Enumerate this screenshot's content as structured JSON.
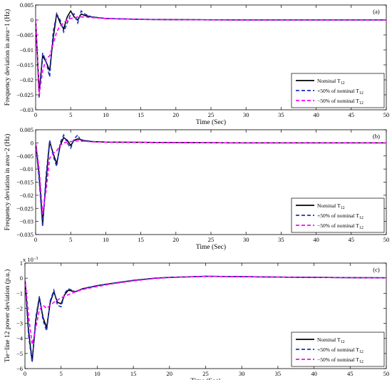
{
  "chart_data": [
    {
      "type": "line",
      "panel_label": "(a)",
      "xlabel": "Time (Sec)",
      "ylabel": "Frequency deviation in area−1 (Hz)",
      "xlim": [
        0,
        50
      ],
      "ylim": [
        -0.03,
        0.005
      ],
      "xticks": [
        "0",
        "5",
        "10",
        "15",
        "20",
        "25",
        "30",
        "35",
        "40",
        "45",
        "50"
      ],
      "yticks": [
        "0.005",
        "0",
        "−0.005",
        "−0.01",
        "−0.015",
        "−0.02",
        "−0.025",
        "−0.03"
      ],
      "exponent_label": "",
      "grid": false,
      "legend_position": "bottom-right",
      "legend": [
        {
          "text": "Nominal T",
          "sub": "12",
          "color": "#000000",
          "dash": "solid"
        },
        {
          "text": "+50% of nominal T",
          "sub": "12",
          "color": "#1f2fbf",
          "dash": "dashed"
        },
        {
          "text": "−50% of nominal T",
          "sub": "12",
          "color": "#ff00ff",
          "dash": "dashed"
        }
      ],
      "series": [
        {
          "color": "#000000",
          "dash": "solid",
          "x": [
            0,
            0.5,
            1,
            1.5,
            2,
            2.5,
            3,
            3.5,
            4,
            4.5,
            5,
            5.5,
            6,
            6.5,
            7,
            8,
            10,
            15,
            20,
            30,
            50
          ],
          "y": [
            0,
            -0.024,
            -0.012,
            -0.014,
            -0.017,
            -0.006,
            0.002,
            -0.001,
            -0.003,
            0.001,
            0.003,
            0.001,
            0.0,
            0.002,
            0.0015,
            0.001,
            0.0005,
            0.0002,
            0.0001,
            0,
            0
          ]
        },
        {
          "color": "#1f2fbf",
          "dash": "dashed",
          "x": [
            0,
            0.5,
            1,
            1.5,
            2,
            2.5,
            3,
            3.5,
            4,
            4.5,
            5,
            5.5,
            6,
            6.5,
            7,
            8,
            10,
            15,
            20,
            30,
            50
          ],
          "y": [
            0,
            -0.026,
            -0.011,
            -0.014,
            -0.019,
            -0.004,
            0.002,
            0.0,
            -0.004,
            -0.001,
            0.002,
            0.002,
            -0.001,
            0.003,
            0.002,
            0.001,
            0.0005,
            0.0002,
            0.0001,
            0,
            0
          ]
        },
        {
          "color": "#ff00ff",
          "dash": "dashed",
          "x": [
            0,
            0.5,
            1,
            1.5,
            2,
            2.5,
            3,
            3.5,
            4,
            4.5,
            5,
            6,
            7,
            8,
            10,
            15,
            20,
            30,
            50
          ],
          "y": [
            0,
            -0.025,
            -0.017,
            -0.013,
            -0.012,
            -0.008,
            -0.004,
            -0.002,
            -0.001,
            0.0,
            0.0005,
            0.001,
            0.001,
            0.0008,
            0.0005,
            0.0002,
            0.0001,
            0,
            0
          ]
        }
      ]
    },
    {
      "type": "line",
      "panel_label": "(b)",
      "xlabel": "Time (Sec)",
      "ylabel": "Frequency deviation in area−2 (Hz)",
      "xlim": [
        0,
        50
      ],
      "ylim": [
        -0.035,
        0.005
      ],
      "xticks": [
        "0",
        "5",
        "10",
        "15",
        "20",
        "25",
        "30",
        "35",
        "40",
        "45",
        "50"
      ],
      "yticks": [
        "0.005",
        "0",
        "−0.005",
        "−0.01",
        "−0.015",
        "−0.02",
        "−0.025",
        "−0.03",
        "−0.035"
      ],
      "exponent_label": "",
      "grid": false,
      "legend_position": "bottom-right",
      "legend": [
        {
          "text": "Nominal T",
          "sub": "12",
          "color": "#000000",
          "dash": "solid"
        },
        {
          "text": "+50% of nominal T",
          "sub": "12",
          "color": "#1f2fbf",
          "dash": "dashed"
        },
        {
          "text": "−50% of nominal T",
          "sub": "12",
          "color": "#ff00ff",
          "dash": "dashed"
        }
      ],
      "series": [
        {
          "color": "#000000",
          "dash": "solid",
          "x": [
            0,
            0.5,
            1,
            1.5,
            2,
            2.5,
            3,
            3.5,
            4,
            4.5,
            5,
            5.5,
            6,
            7,
            8,
            10,
            15,
            20,
            30,
            50
          ],
          "y": [
            0,
            -0.012,
            -0.031,
            -0.014,
            0.0005,
            -0.004,
            -0.008,
            -0.001,
            0.002,
            0.001,
            -0.001,
            0.001,
            0.0015,
            0.0008,
            0.0005,
            0.0003,
            0.0002,
            0.0001,
            0,
            0
          ]
        },
        {
          "color": "#1f2fbf",
          "dash": "dashed",
          "x": [
            0,
            0.5,
            1,
            1.5,
            2,
            2.5,
            3,
            3.5,
            4,
            4.5,
            5,
            5.5,
            6,
            6.5,
            7,
            8,
            10,
            15,
            20,
            30,
            50
          ],
          "y": [
            0,
            -0.014,
            -0.032,
            -0.012,
            0.001,
            -0.005,
            -0.009,
            0.0,
            0.003,
            0.0,
            -0.002,
            0.0015,
            0.003,
            0.0005,
            0.001,
            0.0005,
            0.0003,
            0.0002,
            0.0001,
            0,
            0
          ]
        },
        {
          "color": "#ff00ff",
          "dash": "dashed",
          "x": [
            0,
            0.5,
            1,
            1.5,
            2,
            2.5,
            3,
            3.5,
            4,
            5,
            6,
            7,
            8,
            10,
            15,
            20,
            30,
            50
          ],
          "y": [
            0,
            -0.01,
            -0.027,
            -0.018,
            -0.006,
            -0.004,
            -0.003,
            -0.001,
            0.0,
            0.0005,
            0.0008,
            0.0006,
            0.0004,
            0.0003,
            0.0002,
            0.0001,
            0,
            0
          ]
        }
      ]
    },
    {
      "type": "line",
      "panel_label": "(c)",
      "xlabel": "Time (Sec)",
      "ylabel": "Tie−line 12 power deviation (p.u.)",
      "xlim": [
        0,
        50
      ],
      "ylim": [
        -6,
        1
      ],
      "xticks": [
        "0",
        "5",
        "10",
        "15",
        "20",
        "25",
        "30",
        "35",
        "40",
        "45",
        "50"
      ],
      "yticks": [
        "1",
        "0",
        "−1",
        "−2",
        "−3",
        "−4",
        "−5",
        "−6"
      ],
      "exponent_label": "x 10",
      "exponent_power": "−3",
      "grid": false,
      "legend_position": "bottom-right",
      "legend": [
        {
          "text": "Nominal T",
          "sub": "12",
          "color": "#000000",
          "dash": "solid"
        },
        {
          "text": "+50% of nominal T",
          "sub": "12",
          "color": "#1f2fbf",
          "dash": "dashed"
        },
        {
          "text": "−50% of nominal T",
          "sub": "12",
          "color": "#ff00ff",
          "dash": "dashed"
        }
      ],
      "series": [
        {
          "color": "#000000",
          "dash": "solid",
          "x": [
            0,
            0.5,
            1,
            1.5,
            2,
            2.5,
            3,
            3.5,
            4,
            4.5,
            5,
            5.5,
            6,
            7,
            8,
            10,
            12,
            15,
            18,
            20,
            25,
            30,
            35,
            40,
            50
          ],
          "y": [
            0,
            -3.5,
            -5.5,
            -2.8,
            -1.3,
            -2.6,
            -3.3,
            -1.6,
            -0.9,
            -1.6,
            -1.7,
            -1.1,
            -0.8,
            -0.9,
            -0.7,
            -0.5,
            -0.35,
            -0.15,
            0.0,
            0.05,
            0.12,
            0.1,
            0.07,
            0.05,
            0.02
          ]
        },
        {
          "color": "#1f2fbf",
          "dash": "dashed",
          "x": [
            0,
            0.5,
            1,
            1.5,
            2,
            2.5,
            3,
            3.5,
            4,
            4.5,
            5,
            5.5,
            6,
            7,
            8,
            10,
            12,
            15,
            18,
            20,
            25,
            30,
            35,
            40,
            50
          ],
          "y": [
            0,
            -3.8,
            -5.6,
            -2.6,
            -1.2,
            -2.8,
            -3.5,
            -1.5,
            -0.8,
            -1.8,
            -1.9,
            -1.0,
            -0.7,
            -0.9,
            -0.7,
            -0.5,
            -0.35,
            -0.15,
            0.0,
            0.05,
            0.12,
            0.1,
            0.07,
            0.05,
            0.02
          ]
        },
        {
          "color": "#ff00ff",
          "dash": "dashed",
          "x": [
            0,
            0.5,
            1,
            1.5,
            2,
            2.5,
            3,
            4,
            5,
            6,
            7,
            8,
            10,
            12,
            15,
            18,
            20,
            25,
            30,
            35,
            40,
            50
          ],
          "y": [
            0,
            -2.5,
            -4.4,
            -3.3,
            -2.1,
            -1.8,
            -2.0,
            -1.6,
            -1.3,
            -1.1,
            -0.9,
            -0.75,
            -0.55,
            -0.38,
            -0.18,
            -0.02,
            0.04,
            0.12,
            0.1,
            0.07,
            0.05,
            0.02
          ]
        }
      ]
    }
  ]
}
